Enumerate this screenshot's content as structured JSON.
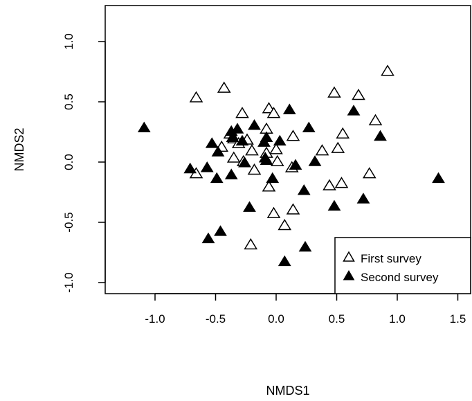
{
  "chart_data": {
    "type": "scatter",
    "xlabel": "NMDS1",
    "ylabel": "NMDS2",
    "xlim": [
      -1.25,
      1.6
    ],
    "ylim": [
      -1.08,
      1.3
    ],
    "x_ticks": [
      -1.0,
      -0.5,
      0.0,
      0.5,
      1.0,
      1.5
    ],
    "x_tick_labels": [
      "-1.0",
      "-0.5",
      "0.0",
      "0.5",
      "1.0",
      "1.5"
    ],
    "y_ticks": [
      -1.0,
      -0.5,
      0.0,
      0.5,
      1.0
    ],
    "y_tick_labels": [
      "-1.0",
      "-0.5",
      "0.0",
      "0.5",
      "1.0"
    ],
    "grid": false,
    "legend_position": "bottom-right",
    "series": [
      {
        "name": "First survey",
        "marker": "open-triangle",
        "points": [
          [
            -0.66,
            0.54
          ],
          [
            -0.43,
            0.62
          ],
          [
            -0.28,
            0.41
          ],
          [
            -0.06,
            0.45
          ],
          [
            -0.02,
            0.41
          ],
          [
            0.48,
            0.58
          ],
          [
            0.68,
            0.56
          ],
          [
            0.92,
            0.76
          ],
          [
            0.82,
            0.35
          ],
          [
            0.55,
            0.24
          ],
          [
            0.14,
            0.22
          ],
          [
            -0.08,
            0.28
          ],
          [
            -0.38,
            0.24
          ],
          [
            -0.35,
            0.2
          ],
          [
            -0.24,
            0.19
          ],
          [
            -0.31,
            0.16
          ],
          [
            -0.45,
            0.13
          ],
          [
            -0.2,
            0.1
          ],
          [
            0.0,
            0.11
          ],
          [
            -0.08,
            0.08
          ],
          [
            0.38,
            0.1
          ],
          [
            0.51,
            0.12
          ],
          [
            -0.35,
            0.04
          ],
          [
            -0.27,
            0.01
          ],
          [
            0.01,
            0.01
          ],
          [
            0.13,
            -0.04
          ],
          [
            -0.18,
            -0.06
          ],
          [
            0.77,
            -0.09
          ],
          [
            -0.66,
            -0.09
          ],
          [
            -0.06,
            -0.2
          ],
          [
            0.44,
            -0.19
          ],
          [
            0.54,
            -0.17
          ],
          [
            -0.02,
            -0.42
          ],
          [
            0.14,
            -0.39
          ],
          [
            0.07,
            -0.52
          ],
          [
            -0.21,
            -0.68
          ]
        ]
      },
      {
        "name": "Second survey",
        "marker": "filled-triangle",
        "points": [
          [
            -1.09,
            0.29
          ],
          [
            -0.53,
            0.16
          ],
          [
            -0.48,
            0.09
          ],
          [
            -0.57,
            -0.04
          ],
          [
            -0.71,
            -0.05
          ],
          [
            -0.49,
            -0.13
          ],
          [
            -0.37,
            0.26
          ],
          [
            -0.36,
            0.21
          ],
          [
            -0.32,
            0.28
          ],
          [
            -0.28,
            0.18
          ],
          [
            -0.18,
            0.31
          ],
          [
            -0.26,
            0.0
          ],
          [
            -0.37,
            -0.1
          ],
          [
            -0.08,
            0.21
          ],
          [
            -0.1,
            0.17
          ],
          [
            -0.09,
            0.04
          ],
          [
            -0.08,
            0.02
          ],
          [
            -0.03,
            -0.13
          ],
          [
            0.11,
            0.44
          ],
          [
            0.03,
            0.18
          ],
          [
            0.27,
            0.29
          ],
          [
            0.16,
            -0.02
          ],
          [
            0.32,
            0.01
          ],
          [
            0.23,
            -0.23
          ],
          [
            0.64,
            0.43
          ],
          [
            0.86,
            0.22
          ],
          [
            1.34,
            -0.13
          ],
          [
            0.72,
            -0.3
          ],
          [
            0.48,
            -0.36
          ],
          [
            -0.22,
            -0.37
          ],
          [
            -0.46,
            -0.57
          ],
          [
            -0.56,
            -0.63
          ],
          [
            0.24,
            -0.7
          ],
          [
            0.07,
            -0.82
          ]
        ]
      }
    ]
  }
}
